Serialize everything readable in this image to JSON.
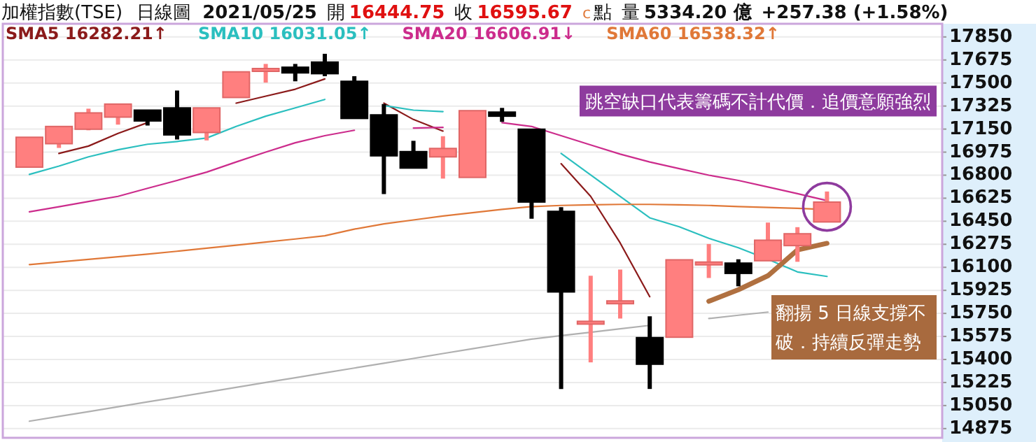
{
  "chart_data": {
    "type": "candlestick",
    "title": "加權指數(TSE)",
    "subtitle": "日線圖",
    "annotations": [
      "2021/05/25",
      "開 16444.75",
      "收 16595.67",
      "c",
      "點",
      "量 5334.20 億",
      "+257.38 (+1.58%)",
      "跳空缺口代表籌碼不計代價．追價意願強烈",
      "翻揚 5 日線支撐不破．持續反彈走勢"
    ],
    "categories": [
      null,
      null,
      null,
      null,
      null,
      null,
      null,
      null,
      null,
      null,
      null,
      null,
      null,
      null,
      null,
      null,
      null,
      null,
      null,
      null,
      null,
      null,
      null,
      null,
      null,
      null,
      null,
      null
    ],
    "ohlc": [
      [
        16861,
        17088,
        16861,
        17088
      ],
      [
        17039,
        17170,
        17007,
        17170
      ],
      [
        17149,
        17305,
        17141,
        17273
      ],
      [
        17241,
        17340,
        17184,
        17340
      ],
      [
        17294,
        17294,
        17177,
        17212
      ],
      [
        17311,
        17443,
        17071,
        17106
      ],
      [
        17124,
        17311,
        17064,
        17311
      ],
      [
        17390,
        17585,
        17390,
        17585
      ],
      [
        17601,
        17645,
        17503,
        17610
      ],
      [
        17620,
        17645,
        17513,
        17577
      ],
      [
        17659,
        17722,
        17552,
        17571
      ],
      [
        17513,
        17552,
        17231,
        17231
      ],
      [
        17258,
        17340,
        16657,
        16947
      ],
      [
        16979,
        17061,
        16854,
        16854
      ],
      [
        16939,
        17096,
        16774,
        17003
      ],
      [
        16783,
        17290,
        16783,
        17290
      ],
      [
        17279,
        17311,
        17205,
        17248
      ],
      [
        17149,
        17149,
        16469,
        16596
      ],
      [
        16525,
        16557,
        15176,
        15913
      ],
      [
        15675,
        16036,
        15378,
        15690
      ],
      [
        15830,
        16083,
        15711,
        15845
      ],
      [
        15566,
        15728,
        15176,
        15364
      ],
      [
        15569,
        16157,
        15569,
        16157
      ],
      [
        16130,
        16277,
        16019,
        16140
      ],
      [
        16132,
        16161,
        15956,
        16054
      ],
      [
        16150,
        16440,
        16150,
        16306
      ],
      [
        16265,
        16405,
        16142,
        16355
      ],
      [
        16444.75,
        16676,
        16444.75,
        16595.67
      ]
    ],
    "colors": [
      "#ff7f7f",
      "#ff7f7f",
      "#ff7f7f",
      "#ff7f7f",
      "#000000",
      "#000000",
      "#ff7f7f",
      "#ff7f7f",
      "#ff7f7f",
      "#000000",
      "#000000",
      "#000000",
      "#000000",
      "#000000",
      "#ff7f7f",
      "#ff7f7f",
      "#000000",
      "#000000",
      "#000000",
      "#ff7f7f",
      "#ff7f7f",
      "#000000",
      "#ff7f7f",
      "#ff7f7f",
      "#000000",
      "#ff7f7f",
      "#ff7f7f",
      "#ff7f7f"
    ],
    "series": [
      {
        "type": "line",
        "name": "SMA5 16282.21↑",
        "color": "#8b1a1a",
        "values": [
          null,
          16965,
          17021,
          17117,
          17199,
          null,
          null,
          17347,
          17400,
          17453,
          17531,
          null,
          17347,
          17223,
          17135,
          null,
          null,
          null,
          16887,
          16639,
          16285,
          15877,
          null,
          15842,
          15930,
          16036,
          16232,
          16282.21
        ]
      },
      {
        "type": "line",
        "name": "SMA10 16031.05↑",
        "color": "#2bbfbf",
        "values": [
          16806,
          16869,
          16939,
          16993,
          17035,
          17056,
          17082,
          17170,
          17248,
          17311,
          17375,
          null,
          17329,
          17294,
          17283,
          null,
          null,
          null,
          16965,
          16802,
          16639,
          16476,
          16408,
          16320,
          16249,
          16161,
          16065,
          16031.05
        ]
      },
      {
        "type": "line",
        "name": "SMA20 16606.91↓",
        "color": "#cc2c8c",
        "values": [
          16522,
          16560,
          16600,
          16639,
          16700,
          16760,
          16823,
          16900,
          16975,
          17046,
          17100,
          17141,
          null,
          17158,
          17163,
          null,
          17199,
          17170,
          17100,
          17030,
          16960,
          16900,
          16850,
          16800,
          16760,
          16710,
          16660,
          16606.91
        ]
      },
      {
        "type": "line",
        "name": "SMA60 16538.32↑",
        "color": "#e07838",
        "values": [
          16121,
          16140,
          16160,
          16180,
          16200,
          16222,
          16245,
          16268,
          16292,
          16315,
          16340,
          16390,
          16430,
          16460,
          16490,
          16515,
          16540,
          16561,
          16570,
          16575,
          16578,
          16578,
          16575,
          16570,
          16562,
          16555,
          16548,
          16538.32
        ]
      },
      {
        "type": "line",
        "color": "#b0b0b0",
        "values": [
          14931,
          14968,
          15004,
          15041,
          15078,
          15114,
          15151,
          15188,
          15225,
          15261,
          15298,
          15335,
          15371,
          15408,
          15445,
          15482,
          15518,
          15555,
          15581,
          15607,
          15633,
          15659,
          null,
          15711,
          15736,
          15760,
          null,
          null
        ]
      },
      {
        "type": "line",
        "color": "#b07040",
        "values": [
          null,
          null,
          null,
          null,
          null,
          null,
          null,
          null,
          null,
          null,
          null,
          null,
          null,
          null,
          null,
          null,
          null,
          null,
          null,
          null,
          null,
          null,
          null,
          15842,
          15930,
          16036,
          16232,
          16282.21
        ]
      }
    ],
    "ylim": [
      14805,
      17950
    ],
    "yticks": [
      14875,
      15050,
      15225,
      15400,
      15575,
      15750,
      15925,
      16100,
      16275,
      16450,
      16625,
      16800,
      16975,
      17150,
      17325,
      17500,
      17675,
      17850
    ],
    "grid": "y",
    "legend": "top left"
  }
}
